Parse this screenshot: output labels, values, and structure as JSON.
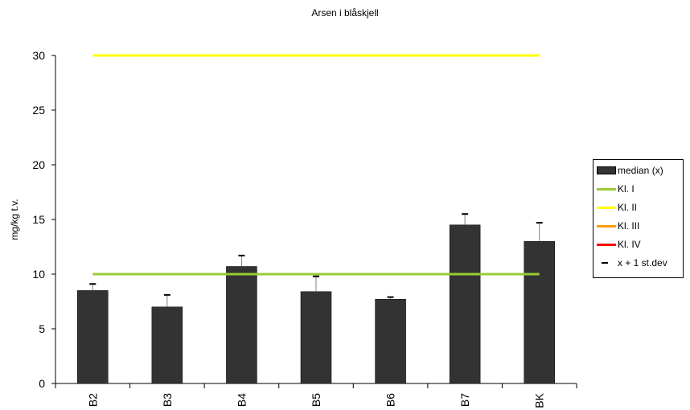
{
  "chart_data": {
    "type": "bar",
    "title": "Arsen i blåskjell",
    "xlabel": "",
    "ylabel": "mg/kg t.v.",
    "ylim": [
      0,
      30
    ],
    "yticks": [
      0,
      5,
      10,
      15,
      20,
      25,
      30
    ],
    "categories": [
      "B2",
      "B3",
      "B4",
      "B5",
      "B6",
      "B7",
      "BK"
    ],
    "series": [
      {
        "name": "median (x)",
        "kind": "bar",
        "color": "#333333",
        "values": [
          8.5,
          7.0,
          10.7,
          8.4,
          7.7,
          14.5,
          13.0
        ]
      },
      {
        "name": "x + 1 st.dev",
        "kind": "errorbar",
        "color": "#000000",
        "values": [
          9.1,
          8.1,
          11.7,
          9.8,
          7.9,
          15.5,
          14.7
        ]
      }
    ],
    "reference_lines": [
      {
        "name": "Kl. I",
        "value": 10,
        "color": "#99cc33",
        "visible": true
      },
      {
        "name": "Kl. II",
        "value": 30,
        "color": "#ffff00",
        "visible": true
      },
      {
        "name": "Kl. III",
        "color": "#ff9900",
        "visible": false
      },
      {
        "name": "Kl. IV",
        "color": "#ff0000",
        "visible": false
      }
    ],
    "legend": {
      "position": "right",
      "items": [
        {
          "label": "median (x)",
          "symbol": "bar",
          "color": "#333333"
        },
        {
          "label": "Kl. I",
          "symbol": "line",
          "color": "#99cc33"
        },
        {
          "label": "Kl. II",
          "symbol": "line",
          "color": "#ffff00"
        },
        {
          "label": "Kl. III",
          "symbol": "line",
          "color": "#ff9900"
        },
        {
          "label": "Kl. IV",
          "symbol": "line",
          "color": "#ff0000"
        },
        {
          "label": "x + 1 st.dev",
          "symbol": "dash",
          "color": "#000000"
        }
      ]
    },
    "grid": false
  }
}
